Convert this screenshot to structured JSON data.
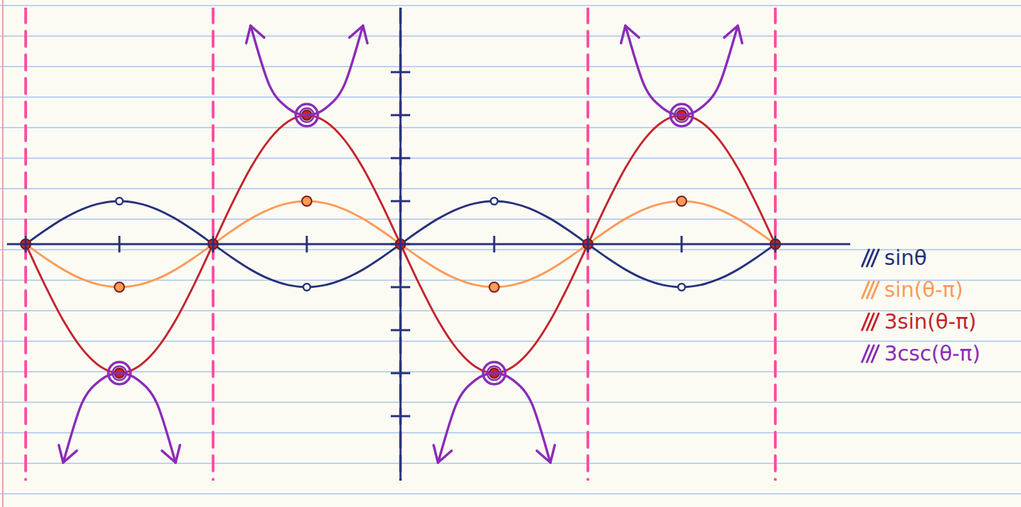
{
  "chart_data": {
    "type": "line",
    "x": [
      -2,
      -1.9,
      -1.8,
      -1.7,
      -1.6,
      -1.5,
      -1.4,
      -1.3,
      -1.2,
      -1.1,
      -1,
      -0.9,
      -0.8,
      -0.7,
      -0.6,
      -0.5,
      -0.4,
      -0.3,
      -0.2,
      -0.1,
      0,
      0.1,
      0.2,
      0.3,
      0.4,
      0.5,
      0.6,
      0.7,
      0.8,
      0.9,
      1,
      1.1,
      1.2,
      1.3,
      1.4,
      1.5,
      1.6,
      1.7,
      1.8,
      1.9,
      2
    ],
    "series": [
      {
        "name": "sinθ",
        "color": "#27307a",
        "marker": "circle",
        "values": [
          0,
          0.31,
          0.59,
          0.81,
          0.95,
          1,
          0.95,
          0.81,
          0.59,
          0.31,
          0,
          -0.31,
          -0.59,
          -0.81,
          -0.95,
          -1,
          -0.95,
          -0.81,
          -0.59,
          -0.31,
          0,
          0.31,
          0.59,
          0.81,
          0.95,
          1,
          0.95,
          0.81,
          0.59,
          0.31,
          0,
          -0.31,
          -0.59,
          -0.81,
          -0.95,
          -1,
          -0.95,
          -0.81,
          -0.59,
          -0.31,
          0
        ]
      },
      {
        "name": "sin(θ-π)",
        "color": "#ff9a57",
        "marker": "dot",
        "values": [
          0,
          -0.31,
          -0.59,
          -0.81,
          -0.95,
          -1,
          -0.95,
          -0.81,
          -0.59,
          -0.31,
          0,
          0.31,
          0.59,
          0.81,
          0.95,
          1,
          0.95,
          0.81,
          0.59,
          0.31,
          0,
          -0.31,
          -0.59,
          -0.81,
          -0.95,
          -1,
          -0.95,
          -0.81,
          -0.59,
          -0.31,
          0,
          0.31,
          0.59,
          0.81,
          0.95,
          1,
          0.95,
          0.81,
          0.59,
          0.31,
          0
        ]
      },
      {
        "name": "3sin(θ-π)",
        "color": "#c4242b",
        "marker": "dot",
        "values": [
          0,
          -0.93,
          -1.77,
          -2.43,
          -2.85,
          -3,
          -2.85,
          -2.43,
          -1.77,
          -0.93,
          0,
          0.93,
          1.77,
          2.43,
          2.85,
          3,
          2.85,
          2.43,
          1.77,
          0.93,
          0,
          -0.93,
          -1.77,
          -2.43,
          -2.85,
          -3,
          -2.85,
          -2.43,
          -1.77,
          -0.93,
          0,
          0.93,
          1.77,
          2.43,
          2.85,
          3,
          2.85,
          2.43,
          1.77,
          0.93,
          0
        ]
      },
      {
        "name": "3csc(θ-π)",
        "color": "#8a2cb8",
        "marker": "ring",
        "line_style": "arrows",
        "values": [
          null,
          null,
          -5.08,
          -3.7,
          -3.16,
          -3,
          -3.16,
          -3.7,
          -5.08,
          null,
          null,
          null,
          5.08,
          3.7,
          3.16,
          3,
          3.16,
          3.7,
          5.08,
          null,
          null,
          null,
          -5.08,
          -3.7,
          -3.16,
          -3,
          -3.16,
          -3.7,
          -5.08,
          null,
          null,
          null,
          5.08,
          3.7,
          3.16,
          3,
          3.16,
          3.7,
          5.08,
          null,
          null
        ]
      }
    ],
    "asymptotes": [
      -2,
      -1,
      0,
      1,
      2
    ],
    "xlim": [
      -2.1,
      2.4
    ],
    "ylim": [
      -5.5,
      5.5
    ],
    "xticks": [
      -2,
      -1.5,
      -1,
      -0.5,
      0,
      0.5,
      1,
      1.5,
      2
    ],
    "yticks": [
      -4,
      -3,
      -2,
      -1,
      0,
      1,
      2,
      3,
      4
    ],
    "tick_labels": false,
    "grid": false,
    "legend": "right"
  }
}
